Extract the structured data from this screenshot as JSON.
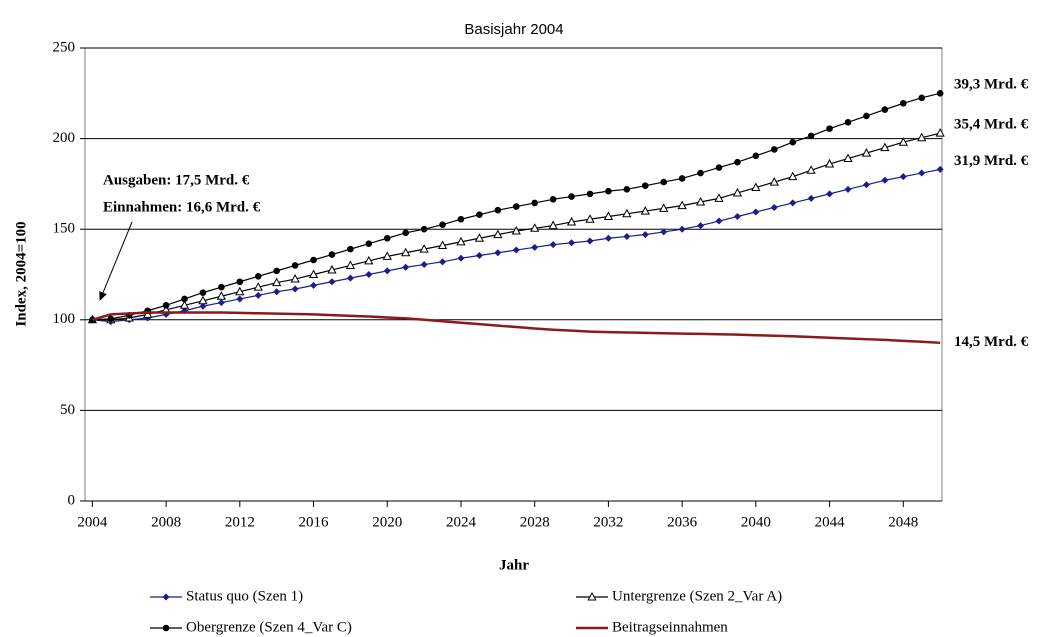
{
  "chart_data": {
    "type": "line",
    "title": "Basisjahr 2004",
    "x_label": "Jahr",
    "y_label": "Index, 2004=100",
    "x": [
      2004,
      2005,
      2006,
      2007,
      2008,
      2009,
      2010,
      2011,
      2012,
      2013,
      2014,
      2015,
      2016,
      2017,
      2018,
      2019,
      2020,
      2021,
      2022,
      2023,
      2024,
      2025,
      2026,
      2027,
      2028,
      2029,
      2030,
      2031,
      2032,
      2033,
      2034,
      2035,
      2036,
      2037,
      2038,
      2039,
      2040,
      2041,
      2042,
      2043,
      2044,
      2045,
      2046,
      2047,
      2048,
      2049,
      2050
    ],
    "xlim": [
      2003.6,
      2050.1
    ],
    "xticks": [
      2004,
      2008,
      2012,
      2016,
      2020,
      2024,
      2028,
      2032,
      2036,
      2040,
      2044,
      2048
    ],
    "ylim": [
      0,
      250
    ],
    "yticks": [
      0,
      50,
      100,
      150,
      200,
      250
    ],
    "grid": true,
    "series": [
      {
        "name": "Status quo (Szen 1)",
        "color": "#1c1c8c",
        "marker": "diamond",
        "end_label": "31,9 Mrd. €",
        "values": [
          100,
          99,
          100,
          101,
          103,
          105,
          107.5,
          109.5,
          111.5,
          113.5,
          115.5,
          117,
          119,
          121,
          123,
          125,
          127,
          129,
          130.5,
          132,
          134,
          135.5,
          137,
          138.5,
          140,
          141.5,
          142.5,
          143.5,
          145,
          146,
          147,
          148.5,
          150,
          152,
          154.5,
          157,
          159.5,
          162,
          164.5,
          167,
          169.5,
          172,
          174.5,
          177,
          179,
          181,
          183
        ]
      },
      {
        "name": "Untergrenze (Szen 2_Var A)",
        "color": "#000000",
        "marker": "triangle",
        "end_label": "35,4 Mrd. €",
        "values": [
          100,
          100,
          101,
          103,
          105.5,
          108,
          110.5,
          113,
          115.5,
          118,
          120.5,
          122.5,
          125,
          127.5,
          130,
          132.5,
          135,
          137,
          139,
          141,
          143,
          145,
          147,
          149,
          150.5,
          152,
          154,
          155.5,
          157,
          158.5,
          160,
          161.5,
          163,
          165,
          167,
          170,
          173,
          176,
          179,
          182.5,
          186,
          189,
          192,
          195,
          198,
          200.5,
          203
        ]
      },
      {
        "name": "Obergrenze (Szen 4_Var C)",
        "color": "#000000",
        "marker": "circle",
        "end_label": "39,3 Mrd. €",
        "values": [
          100,
          100.5,
          102.5,
          105,
          108,
          111.5,
          115,
          118,
          121,
          124,
          127,
          130,
          133,
          136,
          139,
          142,
          145,
          148,
          150,
          152.5,
          155.5,
          158,
          160.5,
          162.5,
          164.5,
          166.5,
          168,
          169.5,
          171,
          172,
          174,
          176,
          178,
          181,
          184,
          187,
          190.5,
          194,
          198,
          201.5,
          205.5,
          209,
          212.5,
          216,
          219.5,
          222.5,
          225
        ]
      },
      {
        "name": "Beitragseinnahmen",
        "color": "#8b1a1a",
        "marker": "none",
        "end_label": "14,5 Mrd. €",
        "values": [
          100,
          103,
          103.5,
          104,
          104,
          104,
          104,
          104,
          103.8,
          103.6,
          103.4,
          103.2,
          103,
          102.6,
          102.2,
          101.8,
          101.3,
          100.8,
          100,
          99.2,
          98.4,
          97.6,
          96.8,
          96,
          95.2,
          94.5,
          94,
          93.5,
          93.2,
          93,
          92.8,
          92.6,
          92.4,
          92.2,
          92,
          91.8,
          91.5,
          91.2,
          90.9,
          90.5,
          90.1,
          89.7,
          89.3,
          88.9,
          88.4,
          87.9,
          87.3
        ]
      }
    ],
    "annotations": [
      {
        "text": "Ausgaben: 17,5 Mrd. €",
        "color": "#000000"
      },
      {
        "text": "Einnahmen: 16,6 Mrd. €",
        "color": "#a0401a"
      }
    ]
  }
}
